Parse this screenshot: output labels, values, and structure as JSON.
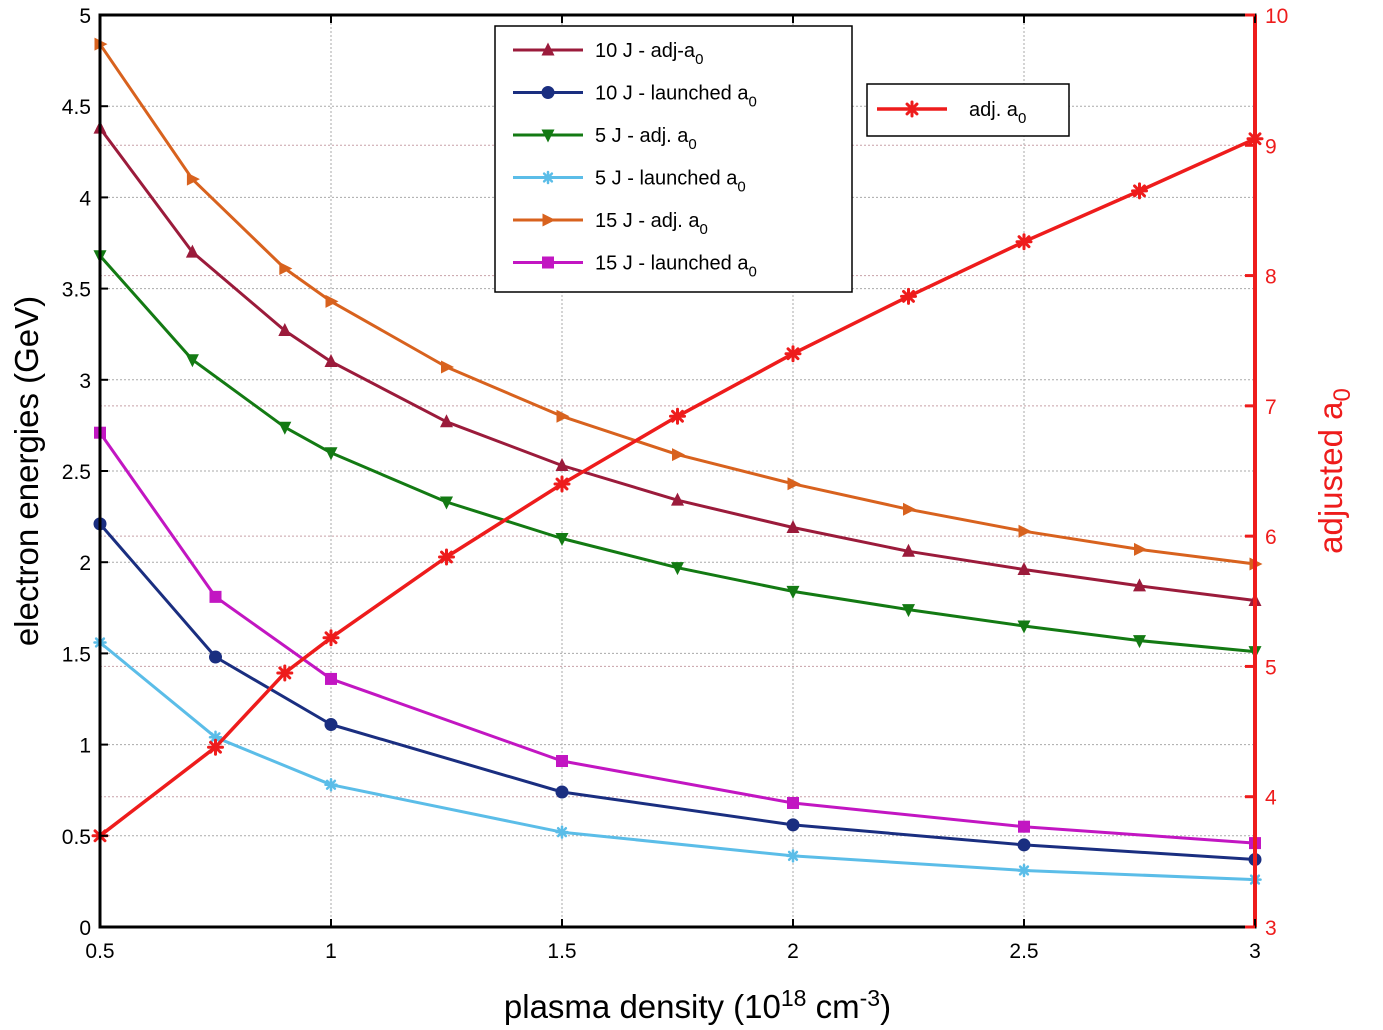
{
  "chart_data": {
    "type": "line",
    "xlabel": {
      "base": "plasma density (10",
      "sup1": "18",
      "mid": " cm",
      "sup2": "-3",
      "end": ")"
    },
    "ylabel_left": "electron energies (GeV)",
    "ylabel_right": {
      "base": "adjusted a",
      "sub": "0"
    },
    "xlim": [
      0.5,
      3
    ],
    "ylim_left": [
      0,
      5
    ],
    "ylim_right": [
      3,
      10
    ],
    "x_ticks": [
      "0.5",
      "1",
      "1.5",
      "2",
      "2.5",
      "3"
    ],
    "y_left_ticks": [
      "0",
      "0.5",
      "1",
      "1.5",
      "2",
      "2.5",
      "3",
      "3.5",
      "4",
      "4.5",
      "5"
    ],
    "y_right_ticks": [
      "3",
      "4",
      "5",
      "6",
      "7",
      "8",
      "9",
      "10"
    ],
    "grid": true,
    "series": [
      {
        "name": "10 J - adj-a",
        "name_sub": "0",
        "axis": "left",
        "color": "#9b1b3b",
        "marker": "triangle-up",
        "x": [
          0.5,
          0.7,
          0.9,
          1.0,
          1.25,
          1.5,
          1.75,
          2.0,
          2.25,
          2.5,
          2.75,
          3.0
        ],
        "y": [
          4.38,
          3.7,
          3.27,
          3.1,
          2.77,
          2.53,
          2.34,
          2.19,
          2.06,
          1.96,
          1.87,
          1.79
        ]
      },
      {
        "name": "10 J - launched a",
        "name_sub": "0",
        "axis": "left",
        "color": "#1a2e80",
        "marker": "circle",
        "x": [
          0.5,
          0.75,
          1.0,
          1.5,
          2.0,
          2.5,
          3.0
        ],
        "y": [
          2.21,
          1.48,
          1.11,
          0.74,
          0.56,
          0.45,
          0.37
        ]
      },
      {
        "name": "5 J - adj. a",
        "name_sub": "0",
        "axis": "left",
        "color": "#137a13",
        "marker": "triangle-down",
        "x": [
          0.5,
          0.7,
          0.9,
          1.0,
          1.25,
          1.5,
          1.75,
          2.0,
          2.25,
          2.5,
          2.75,
          3.0
        ],
        "y": [
          3.68,
          3.11,
          2.74,
          2.6,
          2.33,
          2.13,
          1.97,
          1.84,
          1.74,
          1.65,
          1.57,
          1.51
        ]
      },
      {
        "name": "5 J - launched a",
        "name_sub": "0",
        "axis": "left",
        "color": "#5bbde8",
        "marker": "star",
        "x": [
          0.5,
          0.75,
          1.0,
          1.5,
          2.0,
          2.5,
          3.0
        ],
        "y": [
          1.56,
          1.04,
          0.78,
          0.52,
          0.39,
          0.31,
          0.26
        ]
      },
      {
        "name": "15 J - adj. a",
        "name_sub": "0",
        "axis": "left",
        "color": "#d8621e",
        "marker": "triangle-right",
        "x": [
          0.5,
          0.7,
          0.9,
          1.0,
          1.25,
          1.5,
          1.75,
          2.0,
          2.25,
          2.5,
          2.75,
          3.0
        ],
        "y": [
          4.84,
          4.1,
          3.61,
          3.43,
          3.07,
          2.8,
          2.59,
          2.43,
          2.29,
          2.17,
          2.07,
          1.99
        ]
      },
      {
        "name": "15 J - launched a",
        "name_sub": "0",
        "axis": "left",
        "color": "#c216c2",
        "marker": "square",
        "x": [
          0.5,
          0.75,
          1.0,
          1.5,
          2.0,
          2.5,
          3.0
        ],
        "y": [
          2.71,
          1.81,
          1.36,
          0.91,
          0.68,
          0.55,
          0.46
        ]
      },
      {
        "name": "adj. a",
        "name_sub": "0",
        "axis": "right",
        "color": "#ee1c1c",
        "marker": "asterisk",
        "x": [
          0.5,
          0.75,
          0.9,
          1.0,
          1.25,
          1.5,
          1.75,
          2.0,
          2.25,
          2.5,
          2.75,
          3.0
        ],
        "y": [
          3.7,
          4.38,
          4.95,
          5.22,
          5.84,
          6.4,
          6.92,
          7.4,
          7.84,
          8.26,
          8.65,
          9.05
        ]
      }
    ],
    "legend_main_placement": "top-center",
    "legend_secondary_placement": "top-right"
  },
  "colors": {
    "axis_left": "#000000",
    "axis_right": "#ee1c1c",
    "grid": "#aaaaaa",
    "grid_right": "#c8a0a8"
  }
}
